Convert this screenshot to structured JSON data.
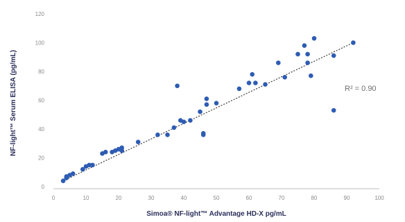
{
  "chart_data": {
    "type": "scatter",
    "title": "",
    "xlabel": "Simoa® NF-light™ Advantage HD-X pg/mL",
    "ylabel": "NF-light™ Serum ELISA (pg/mL)",
    "xlim": [
      0,
      100
    ],
    "ylim": [
      0,
      120
    ],
    "xticks": [
      "0",
      "10",
      "20",
      "30",
      "40",
      "50",
      "60",
      "70",
      "80",
      "90",
      "100"
    ],
    "yticks": [
      "0",
      "20",
      "40",
      "60",
      "80",
      "100",
      "120"
    ],
    "grid": false,
    "annotation": "R² = 0.90",
    "trendline": {
      "x": [
        3,
        92
      ],
      "y": [
        4,
        100
      ]
    },
    "series": [
      {
        "x": [
          3,
          4,
          4,
          5,
          6,
          9,
          10,
          11,
          12,
          15,
          16,
          18,
          19,
          20,
          21,
          21,
          26,
          32,
          35,
          37,
          38,
          39,
          40,
          42,
          45,
          46,
          46,
          47,
          47,
          50,
          57,
          60,
          61,
          62,
          65,
          69,
          71,
          75,
          77,
          78,
          78,
          79,
          80,
          86,
          86,
          92
        ],
        "y": [
          4,
          6,
          7,
          8,
          9,
          12,
          14,
          15,
          15,
          23,
          24,
          24,
          25,
          26,
          27,
          25,
          31,
          36,
          36,
          41,
          70,
          46,
          45,
          46,
          52,
          37,
          36,
          61,
          57,
          58,
          68,
          72,
          78,
          72,
          71,
          86,
          76,
          92,
          98,
          92,
          86,
          77,
          103,
          91,
          53,
          100
        ]
      }
    ],
    "colors": {
      "points": "#2e5cb3",
      "trendline": "#3a3a3a",
      "axis": "#bfbfbf"
    }
  }
}
